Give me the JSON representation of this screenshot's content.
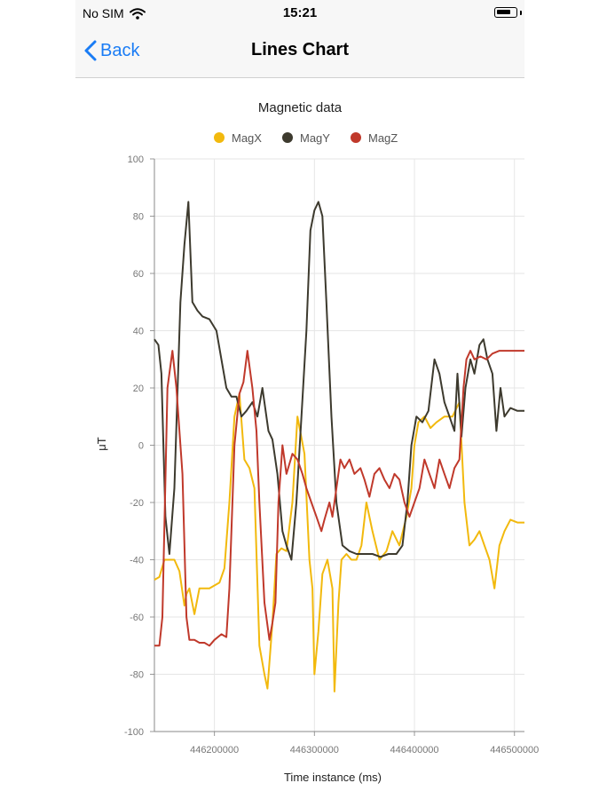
{
  "status": {
    "carrier": "No SIM",
    "time": "15:21",
    "battery_level": 0.8
  },
  "nav": {
    "back_label": "Back",
    "title": "Lines Chart"
  },
  "chart_data": {
    "type": "line",
    "title": "Magnetic data",
    "xlabel": "Time instance (ms)",
    "ylabel": "μT",
    "ylim": [
      -100,
      100
    ],
    "xlim": [
      446140000,
      446510000
    ],
    "xticks": [
      446200000,
      446300000,
      446400000,
      446500000
    ],
    "yticks": [
      -100,
      -80,
      -60,
      -40,
      -20,
      0,
      20,
      40,
      60,
      80,
      100
    ],
    "grid": true,
    "legend_position": "top-center",
    "series": [
      {
        "name": "MagX",
        "color": "#f2b90d",
        "points": [
          [
            446140000,
            -47
          ],
          [
            446145000,
            -46
          ],
          [
            446150000,
            -40
          ],
          [
            446160000,
            -40
          ],
          [
            446165000,
            -44
          ],
          [
            446170000,
            -56
          ],
          [
            446172000,
            -52
          ],
          [
            446175000,
            -50
          ],
          [
            446180000,
            -59
          ],
          [
            446185000,
            -50
          ],
          [
            446195000,
            -50
          ],
          [
            446205000,
            -48
          ],
          [
            446210000,
            -43
          ],
          [
            446215000,
            -20
          ],
          [
            446220000,
            10
          ],
          [
            446225000,
            18
          ],
          [
            446230000,
            -5
          ],
          [
            446235000,
            -8
          ],
          [
            446240000,
            -15
          ],
          [
            446245000,
            -70
          ],
          [
            446250000,
            -80
          ],
          [
            446253000,
            -85
          ],
          [
            446258000,
            -62
          ],
          [
            446262000,
            -38
          ],
          [
            446267000,
            -36
          ],
          [
            446272000,
            -37
          ],
          [
            446278000,
            -20
          ],
          [
            446283000,
            10
          ],
          [
            446290000,
            -3
          ],
          [
            446295000,
            -40
          ],
          [
            446298000,
            -50
          ],
          [
            446300000,
            -80
          ],
          [
            446304000,
            -65
          ],
          [
            446308000,
            -45
          ],
          [
            446313000,
            -40
          ],
          [
            446318000,
            -50
          ],
          [
            446320000,
            -86
          ],
          [
            446324000,
            -55
          ],
          [
            446327000,
            -40
          ],
          [
            446332000,
            -38
          ],
          [
            446337000,
            -40
          ],
          [
            446342000,
            -40
          ],
          [
            446347000,
            -35
          ],
          [
            446352000,
            -20
          ],
          [
            446358000,
            -30
          ],
          [
            446365000,
            -40
          ],
          [
            446372000,
            -37
          ],
          [
            446378000,
            -30
          ],
          [
            446385000,
            -35
          ],
          [
            446392000,
            -25
          ],
          [
            446397000,
            -15
          ],
          [
            446400000,
            0
          ],
          [
            446404000,
            8
          ],
          [
            446410000,
            10
          ],
          [
            446416000,
            6
          ],
          [
            446422000,
            8
          ],
          [
            446430000,
            10
          ],
          [
            446438000,
            10
          ],
          [
            446445000,
            15
          ],
          [
            446450000,
            -20
          ],
          [
            446455000,
            -35
          ],
          [
            446460000,
            -33
          ],
          [
            446465000,
            -30
          ],
          [
            446470000,
            -35
          ],
          [
            446475000,
            -40
          ],
          [
            446480000,
            -50
          ],
          [
            446485000,
            -35
          ],
          [
            446490000,
            -30
          ],
          [
            446496000,
            -26
          ],
          [
            446503000,
            -27
          ],
          [
            446510000,
            -27
          ]
        ]
      },
      {
        "name": "MagY",
        "color": "#3d3a2e",
        "points": [
          [
            446140000,
            37
          ],
          [
            446144000,
            35
          ],
          [
            446147000,
            25
          ],
          [
            446151000,
            -25
          ],
          [
            446155000,
            -38
          ],
          [
            446160000,
            -15
          ],
          [
            446166000,
            50
          ],
          [
            446170000,
            70
          ],
          [
            446174000,
            85
          ],
          [
            446178000,
            50
          ],
          [
            446183000,
            47
          ],
          [
            446188000,
            45
          ],
          [
            446195000,
            44
          ],
          [
            446202000,
            40
          ],
          [
            446207000,
            30
          ],
          [
            446212000,
            20
          ],
          [
            446217000,
            17
          ],
          [
            446222000,
            17
          ],
          [
            446227000,
            10
          ],
          [
            446232000,
            12
          ],
          [
            446238000,
            15
          ],
          [
            446243000,
            10
          ],
          [
            446248000,
            20
          ],
          [
            446254000,
            5
          ],
          [
            446258000,
            2
          ],
          [
            446263000,
            -10
          ],
          [
            446268000,
            -30
          ],
          [
            446272000,
            -35
          ],
          [
            446277000,
            -40
          ],
          [
            446282000,
            -20
          ],
          [
            446287000,
            10
          ],
          [
            446292000,
            40
          ],
          [
            446296000,
            75
          ],
          [
            446300000,
            82
          ],
          [
            446304000,
            85
          ],
          [
            446308000,
            80
          ],
          [
            446312000,
            50
          ],
          [
            446317000,
            10
          ],
          [
            446322000,
            -20
          ],
          [
            446328000,
            -35
          ],
          [
            446335000,
            -37
          ],
          [
            446342000,
            -38
          ],
          [
            446350000,
            -38
          ],
          [
            446358000,
            -38
          ],
          [
            446366000,
            -39
          ],
          [
            446374000,
            -38
          ],
          [
            446382000,
            -38
          ],
          [
            446388000,
            -35
          ],
          [
            446393000,
            -20
          ],
          [
            446397000,
            0
          ],
          [
            446402000,
            10
          ],
          [
            446408000,
            8
          ],
          [
            446414000,
            12
          ],
          [
            446420000,
            30
          ],
          [
            446425000,
            25
          ],
          [
            446430000,
            15
          ],
          [
            446435000,
            10
          ],
          [
            446440000,
            5
          ],
          [
            446443000,
            25
          ],
          [
            446447000,
            3
          ],
          [
            446451000,
            20
          ],
          [
            446456000,
            30
          ],
          [
            446460000,
            25
          ],
          [
            446465000,
            35
          ],
          [
            446469000,
            37
          ],
          [
            446473000,
            30
          ],
          [
            446478000,
            25
          ],
          [
            446482000,
            5
          ],
          [
            446486000,
            20
          ],
          [
            446490000,
            10
          ],
          [
            446496000,
            13
          ],
          [
            446503000,
            12
          ],
          [
            446510000,
            12
          ]
        ]
      },
      {
        "name": "MagZ",
        "color": "#c0392b",
        "points": [
          [
            446140000,
            -70
          ],
          [
            446145000,
            -70
          ],
          [
            446148000,
            -60
          ],
          [
            446153000,
            20
          ],
          [
            446158000,
            33
          ],
          [
            446162000,
            20
          ],
          [
            446168000,
            -10
          ],
          [
            446172000,
            -60
          ],
          [
            446175000,
            -68
          ],
          [
            446180000,
            -68
          ],
          [
            446185000,
            -69
          ],
          [
            446190000,
            -69
          ],
          [
            446195000,
            -70
          ],
          [
            446200000,
            -68
          ],
          [
            446207000,
            -66
          ],
          [
            446212000,
            -67
          ],
          [
            446215000,
            -50
          ],
          [
            446220000,
            0
          ],
          [
            446225000,
            18
          ],
          [
            446229000,
            22
          ],
          [
            446233000,
            33
          ],
          [
            446238000,
            20
          ],
          [
            446242000,
            5
          ],
          [
            446245000,
            -20
          ],
          [
            446250000,
            -55
          ],
          [
            446255000,
            -68
          ],
          [
            446258000,
            -62
          ],
          [
            446261000,
            -55
          ],
          [
            446264000,
            -20
          ],
          [
            446268000,
            0
          ],
          [
            446272000,
            -10
          ],
          [
            446278000,
            -3
          ],
          [
            446283000,
            -5
          ],
          [
            446288000,
            -10
          ],
          [
            446292000,
            -15
          ],
          [
            446297000,
            -20
          ],
          [
            446302000,
            -25
          ],
          [
            446307000,
            -30
          ],
          [
            446310000,
            -26
          ],
          [
            446315000,
            -20
          ],
          [
            446318000,
            -25
          ],
          [
            446322000,
            -15
          ],
          [
            446326000,
            -5
          ],
          [
            446330000,
            -8
          ],
          [
            446335000,
            -5
          ],
          [
            446340000,
            -10
          ],
          [
            446346000,
            -8
          ],
          [
            446350000,
            -12
          ],
          [
            446355000,
            -18
          ],
          [
            446360000,
            -10
          ],
          [
            446365000,
            -8
          ],
          [
            446370000,
            -12
          ],
          [
            446375000,
            -15
          ],
          [
            446380000,
            -10
          ],
          [
            446385000,
            -12
          ],
          [
            446390000,
            -20
          ],
          [
            446395000,
            -25
          ],
          [
            446400000,
            -20
          ],
          [
            446405000,
            -15
          ],
          [
            446410000,
            -5
          ],
          [
            446415000,
            -10
          ],
          [
            446420000,
            -15
          ],
          [
            446425000,
            -5
          ],
          [
            446430000,
            -10
          ],
          [
            446435000,
            -15
          ],
          [
            446440000,
            -8
          ],
          [
            446445000,
            -5
          ],
          [
            446449000,
            20
          ],
          [
            446452000,
            30
          ],
          [
            446456000,
            33
          ],
          [
            446460000,
            30
          ],
          [
            446466000,
            31
          ],
          [
            446472000,
            30
          ],
          [
            446478000,
            32
          ],
          [
            446485000,
            33
          ],
          [
            446492000,
            33
          ],
          [
            446500000,
            33
          ],
          [
            446510000,
            33
          ]
        ]
      }
    ]
  }
}
